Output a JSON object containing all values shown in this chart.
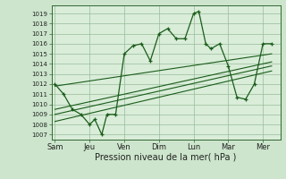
{
  "xlabel": "Pression niveau de la mer( hPa )",
  "bg_color": "#cce5cc",
  "plot_bg_color": "#d9edd9",
  "grid_color": "#99bb99",
  "line_color": "#1a5c1a",
  "ylim": [
    1006.5,
    1019.8
  ],
  "yticks": [
    1007,
    1008,
    1009,
    1010,
    1011,
    1012,
    1013,
    1014,
    1015,
    1016,
    1017,
    1018,
    1019
  ],
  "x_labels": [
    "Sam",
    "Jeu",
    "Ven",
    "Dim",
    "Lun",
    "Mar",
    "Mer"
  ],
  "x_positions": [
    0,
    2,
    4,
    6,
    8,
    10,
    12
  ],
  "xlim": [
    -0.2,
    13.0
  ],
  "series1_x": [
    0,
    0.5,
    1,
    1.5,
    2,
    2.3,
    2.7,
    3,
    3.5,
    4,
    4.5,
    5,
    5.5,
    6,
    6.5,
    7,
    7.5,
    8,
    8.3,
    8.7,
    9,
    9.5,
    10,
    10.5,
    11,
    11.5,
    12,
    12.5
  ],
  "series1_y": [
    1012,
    1011,
    1009.5,
    1009,
    1008,
    1008.5,
    1007,
    1009,
    1009,
    1015,
    1015.8,
    1016,
    1014.3,
    1017,
    1017.5,
    1016.5,
    1016.5,
    1019,
    1019.2,
    1016,
    1015.5,
    1016,
    1013.8,
    1010.7,
    1010.5,
    1012,
    1016,
    1016
  ],
  "trend_lines": [
    {
      "x": [
        0,
        12.5
      ],
      "y": [
        1011.8,
        1015.0
      ]
    },
    {
      "x": [
        0,
        12.5
      ],
      "y": [
        1009.5,
        1014.2
      ]
    },
    {
      "x": [
        0,
        12.5
      ],
      "y": [
        1009.0,
        1013.8
      ]
    },
    {
      "x": [
        0,
        12.5
      ],
      "y": [
        1008.3,
        1013.3
      ]
    }
  ],
  "xlabel_fontsize": 7,
  "ytick_fontsize": 5,
  "xtick_fontsize": 6
}
